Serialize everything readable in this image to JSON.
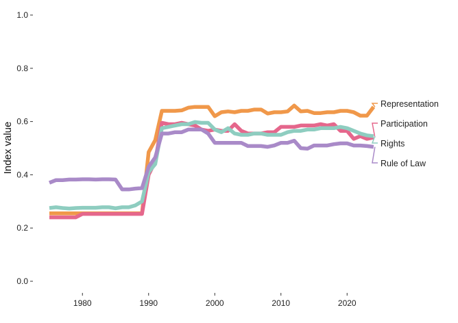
{
  "chart_data": {
    "type": "line",
    "title": "",
    "xlabel": "",
    "ylabel": "Index value",
    "xlim": [
      1974.5,
      2026
    ],
    "ylim": [
      0,
      1.0
    ],
    "x_ticks": [
      1980,
      1990,
      2000,
      2010,
      2020
    ],
    "y_ticks": [
      0.0,
      0.2,
      0.4,
      0.6,
      0.8,
      1.0
    ],
    "y_tick_labels": [
      "0.0",
      "0.2",
      "0.4",
      "0.6",
      "0.8",
      "1.0"
    ],
    "grid": false,
    "legend": "direct labels at line ends (right)",
    "x": [
      1975,
      1976,
      1977,
      1978,
      1979,
      1980,
      1981,
      1982,
      1983,
      1984,
      1985,
      1986,
      1987,
      1988,
      1989,
      1990,
      1991,
      1992,
      1993,
      1994,
      1995,
      1996,
      1997,
      1998,
      1999,
      2000,
      2001,
      2002,
      2003,
      2004,
      2005,
      2006,
      2007,
      2008,
      2009,
      2010,
      2011,
      2012,
      2013,
      2014,
      2015,
      2016,
      2017,
      2018,
      2019,
      2020,
      2021,
      2022,
      2023,
      2024
    ],
    "series": [
      {
        "name": "Representation",
        "color": "#f0984a",
        "values": [
          0.255,
          0.255,
          0.255,
          0.255,
          0.255,
          0.255,
          0.255,
          0.255,
          0.255,
          0.255,
          0.255,
          0.255,
          0.255,
          0.255,
          0.255,
          0.485,
          0.53,
          0.64,
          0.64,
          0.64,
          0.642,
          0.652,
          0.655,
          0.655,
          0.655,
          0.62,
          0.635,
          0.638,
          0.635,
          0.64,
          0.64,
          0.645,
          0.645,
          0.63,
          0.635,
          0.635,
          0.638,
          0.66,
          0.638,
          0.64,
          0.632,
          0.632,
          0.635,
          0.635,
          0.64,
          0.64,
          0.635,
          0.622,
          0.622,
          0.655
        ]
      },
      {
        "name": "Participation",
        "color": "#e5678c",
        "values": [
          0.24,
          0.24,
          0.24,
          0.24,
          0.24,
          0.253,
          0.253,
          0.253,
          0.253,
          0.253,
          0.253,
          0.253,
          0.253,
          0.253,
          0.253,
          0.4,
          0.45,
          0.595,
          0.59,
          0.59,
          0.595,
          0.59,
          0.585,
          0.57,
          0.565,
          0.57,
          0.565,
          0.565,
          0.59,
          0.565,
          0.555,
          0.555,
          0.555,
          0.56,
          0.56,
          0.58,
          0.58,
          0.58,
          0.585,
          0.585,
          0.585,
          0.59,
          0.585,
          0.59,
          0.565,
          0.565,
          0.535,
          0.545,
          0.535,
          0.54
        ]
      },
      {
        "name": "Rights",
        "color": "#8ecdc0",
        "values": [
          0.275,
          0.278,
          0.275,
          0.273,
          0.275,
          0.276,
          0.276,
          0.276,
          0.278,
          0.278,
          0.274,
          0.278,
          0.278,
          0.285,
          0.3,
          0.41,
          0.44,
          0.575,
          0.58,
          0.585,
          0.59,
          0.59,
          0.598,
          0.595,
          0.595,
          0.57,
          0.56,
          0.575,
          0.555,
          0.55,
          0.55,
          0.555,
          0.555,
          0.55,
          0.55,
          0.55,
          0.56,
          0.565,
          0.565,
          0.57,
          0.57,
          0.575,
          0.575,
          0.575,
          0.58,
          0.575,
          0.565,
          0.555,
          0.548,
          0.545
        ]
      },
      {
        "name": "Rule of Law",
        "color": "#a98ac8",
        "values": [
          0.37,
          0.38,
          0.38,
          0.382,
          0.382,
          0.383,
          0.383,
          0.382,
          0.383,
          0.383,
          0.382,
          0.345,
          0.345,
          0.348,
          0.35,
          0.43,
          0.465,
          0.555,
          0.555,
          0.56,
          0.56,
          0.57,
          0.57,
          0.57,
          0.555,
          0.52,
          0.52,
          0.52,
          0.52,
          0.52,
          0.508,
          0.508,
          0.508,
          0.505,
          0.51,
          0.52,
          0.52,
          0.528,
          0.5,
          0.498,
          0.51,
          0.51,
          0.51,
          0.515,
          0.518,
          0.518,
          0.51,
          0.51,
          0.508,
          0.505
        ]
      }
    ]
  }
}
